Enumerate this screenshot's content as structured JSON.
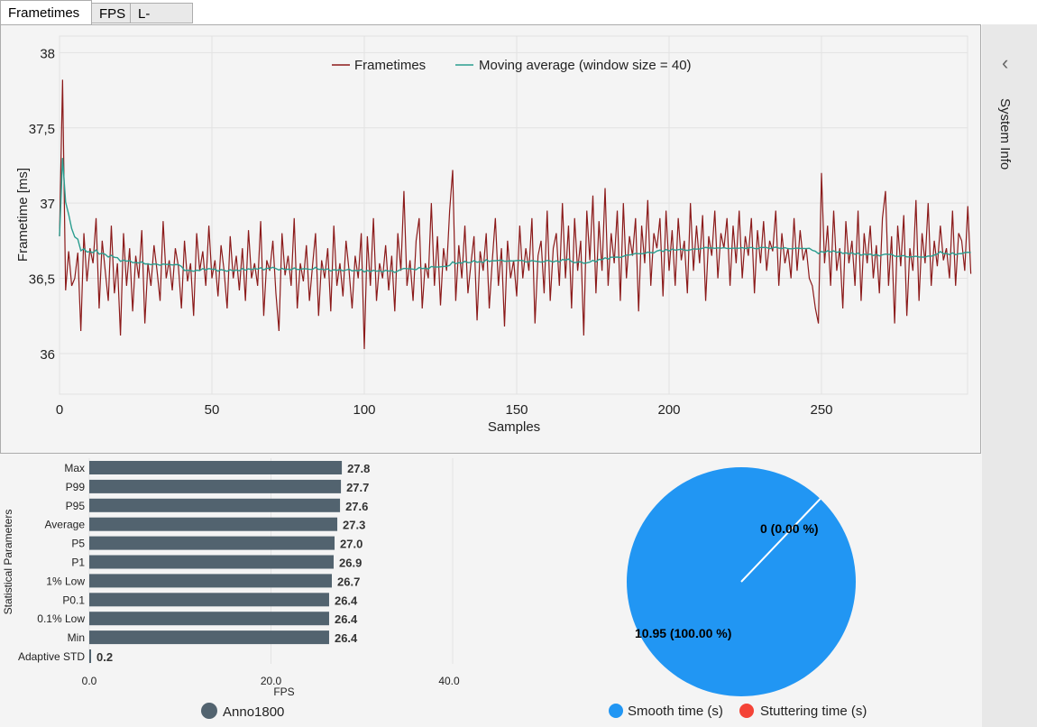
{
  "tabs": [
    "Frametimes",
    "FPS",
    "L-shape"
  ],
  "sidebar": {
    "label": "System Info"
  },
  "colors": {
    "frametimes": "#8b1a1a",
    "moving_average": "#2a9d8f",
    "bar": "#52636f",
    "smooth": "#2196f3",
    "stutter": "#f44336"
  },
  "chart_data": [
    {
      "type": "line",
      "title": "",
      "xlabel": "Samples",
      "ylabel": "Frametime [ms]",
      "xlim": [
        0,
        300
      ],
      "ylim": [
        35.73,
        38.11
      ],
      "xticks": [
        "0",
        "50",
        "100",
        "150",
        "200",
        "250"
      ],
      "yticks": [
        "36",
        "36,5",
        "37",
        "37,5",
        "38"
      ],
      "grid": true,
      "legend_position": "top",
      "series": [
        {
          "name": "Frametimes"
        },
        {
          "name": "Moving average (window size = 40)",
          "window": 40
        }
      ],
      "frametimes": [
        36.78,
        37.82,
        36.42,
        36.68,
        36.45,
        36.5,
        36.67,
        36.15,
        36.8,
        36.48,
        36.7,
        36.6,
        36.9,
        36.3,
        36.75,
        36.55,
        36.35,
        36.85,
        36.4,
        36.6,
        36.12,
        36.8,
        36.45,
        36.7,
        36.28,
        36.65,
        36.5,
        36.82,
        36.2,
        36.6,
        36.45,
        36.72,
        36.55,
        36.35,
        36.88,
        36.5,
        36.62,
        36.42,
        36.7,
        36.58,
        36.3,
        36.75,
        36.48,
        36.6,
        36.25,
        36.8,
        36.55,
        36.68,
        36.45,
        36.85,
        36.5,
        36.62,
        36.38,
        36.72,
        36.55,
        36.3,
        36.78,
        36.5,
        36.65,
        36.42,
        36.7,
        36.35,
        36.82,
        36.5,
        36.6,
        36.45,
        36.88,
        36.25,
        36.62,
        36.55,
        36.75,
        36.4,
        36.15,
        36.8,
        36.52,
        36.65,
        36.45,
        36.9,
        36.3,
        36.6,
        36.48,
        36.72,
        36.35,
        36.58,
        36.8,
        36.25,
        36.62,
        36.5,
        36.7,
        36.28,
        36.85,
        36.45,
        36.6,
        36.38,
        36.75,
        36.55,
        36.3,
        36.65,
        36.5,
        36.8,
        36.03,
        36.78,
        36.45,
        36.9,
        36.35,
        36.6,
        36.5,
        36.72,
        36.42,
        36.65,
        36.28,
        36.8,
        36.55,
        37.08,
        36.45,
        36.62,
        36.35,
        36.75,
        36.9,
        36.3,
        36.6,
        36.5,
        37.0,
        36.45,
        36.78,
        36.32,
        36.7,
        36.55,
        36.95,
        37.22,
        36.35,
        36.72,
        36.5,
        36.85,
        36.4,
        36.6,
        36.78,
        36.22,
        36.68,
        36.55,
        36.8,
        36.3,
        36.62,
        36.9,
        36.45,
        36.7,
        36.18,
        36.75,
        36.5,
        36.62,
        36.38,
        36.85,
        36.5,
        36.7,
        36.55,
        36.9,
        36.2,
        36.65,
        36.75,
        36.4,
        36.95,
        36.35,
        36.7,
        36.8,
        36.45,
        37.0,
        36.5,
        36.85,
        36.3,
        36.9,
        36.55,
        36.75,
        36.12,
        36.95,
        36.62,
        37.05,
        36.4,
        36.88,
        36.55,
        37.1,
        36.45,
        36.8,
        36.6,
        36.95,
        36.35,
        37.0,
        36.5,
        36.78,
        36.65,
        36.9,
        36.28,
        36.85,
        36.6,
        37.02,
        36.45,
        36.8,
        36.7,
        36.9,
        36.38,
        36.95,
        36.55,
        36.82,
        36.45,
        36.9,
        36.62,
        36.75,
        36.4,
        37.0,
        36.55,
        36.85,
        36.6,
        36.92,
        36.35,
        36.78,
        36.65,
        36.95,
        36.5,
        36.8,
        36.7,
        36.9,
        36.45,
        36.85,
        36.6,
        36.95,
        36.5,
        36.78,
        36.65,
        36.9,
        36.4,
        36.82,
        36.6,
        36.88,
        36.55,
        36.75,
        36.68,
        36.95,
        36.45,
        36.8,
        36.6,
        36.7,
        36.5,
        36.9,
        36.55,
        36.82,
        36.62,
        36.7,
        36.5,
        36.45,
        36.3,
        36.2,
        37.2,
        36.6,
        36.85,
        36.45,
        36.95,
        36.55,
        36.7,
        36.3,
        36.88,
        36.6,
        36.75,
        36.45,
        36.95,
        36.35,
        36.8,
        36.6,
        36.85,
        36.5,
        36.72,
        36.4,
        36.9,
        37.08,
        36.45,
        36.78,
        36.2,
        36.85,
        36.58,
        36.92,
        36.25,
        36.7,
        36.55,
        37.02,
        36.35,
        36.8,
        36.6,
        37.0,
        36.45,
        36.75,
        36.58,
        36.85,
        36.62,
        36.7,
        36.5,
        36.95,
        36.45,
        36.8,
        36.75,
        36.55,
        36.98,
        36.53
      ]
    },
    {
      "type": "bar",
      "orientation": "horizontal",
      "ylabel": "Statistical Parameters",
      "xlabel": "FPS",
      "xlim": [
        0,
        40
      ],
      "xticks": [
        "0.0",
        "20.0",
        "40.0"
      ],
      "categories": [
        "Max",
        "P99",
        "P95",
        "Average",
        "P5",
        "P1",
        "1% Low",
        "P0.1",
        "0.1% Low",
        "Min",
        "Adaptive STD"
      ],
      "values": [
        27.8,
        27.7,
        27.6,
        27.3,
        27.0,
        26.9,
        26.7,
        26.4,
        26.4,
        26.4,
        0.2
      ],
      "labels": [
        "27.8",
        "27.7",
        "27.6",
        "27.3",
        "27.0",
        "26.9",
        "26.7",
        "26.4",
        "26.4",
        "26.4",
        "0.2"
      ],
      "legend": "Anno1800"
    },
    {
      "type": "pie",
      "slices": [
        {
          "name": "Smooth time (s)",
          "value": 10.95,
          "label": "10.95 (100.00 %)"
        },
        {
          "name": "Stuttering time (s)",
          "value": 0,
          "label": "0 (0.00 %)"
        }
      ],
      "legend_position": "bottom"
    }
  ]
}
